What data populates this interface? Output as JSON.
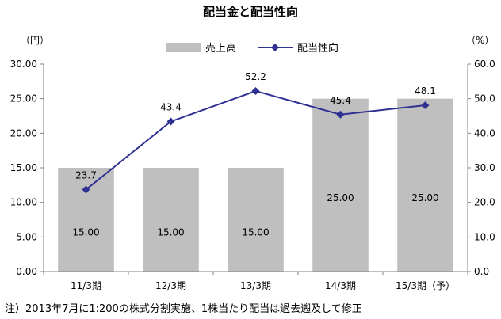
{
  "chart_data": {
    "type": "bar",
    "title": "配当金と配当性向",
    "categories": [
      "11/3期",
      "12/3期",
      "13/3期",
      "14/3期",
      "15/3期（予）"
    ],
    "series": [
      {
        "name": "売上高",
        "type": "bar",
        "axis": "left",
        "values": [
          15.0,
          15.0,
          15.0,
          25.0,
          25.0
        ],
        "labels": [
          "15.00",
          "15.00",
          "15.00",
          "25.00",
          "25.00"
        ],
        "color": "#bfbfbf"
      },
      {
        "name": "配当性向",
        "type": "line",
        "axis": "right",
        "values": [
          23.7,
          43.4,
          52.2,
          45.4,
          48.1
        ],
        "labels": [
          "23.7",
          "43.4",
          "52.2",
          "45.4",
          "48.1"
        ],
        "color": "#2e3192"
      }
    ],
    "y_left": {
      "unit": "（円）",
      "ylim": [
        0,
        30
      ],
      "ticks": [
        "0.00",
        "5.00",
        "10.00",
        "15.00",
        "20.00",
        "25.00",
        "30.00"
      ]
    },
    "y_right": {
      "unit": "（%）",
      "ylim": [
        0,
        60
      ],
      "ticks": [
        "0.0",
        "10.0",
        "20.0",
        "30.0",
        "40.0",
        "50.0",
        "60.0"
      ]
    },
    "grid": false,
    "legend": "top-center",
    "note": "注）2013年7月に1:200の株式分割実施、1株当たり配当は過去遡及して修正"
  }
}
